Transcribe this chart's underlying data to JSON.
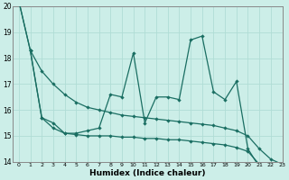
{
  "xlabel": "Humidex (Indice chaleur)",
  "bg_color": "#cceee8",
  "grid_color": "#b0ddd5",
  "line_color": "#1a6e62",
  "ylim": [
    14,
    20
  ],
  "xlim": [
    -0.5,
    23
  ],
  "yticks": [
    14,
    15,
    16,
    17,
    18,
    19,
    20
  ],
  "xticks": [
    0,
    1,
    2,
    3,
    4,
    5,
    6,
    7,
    8,
    9,
    10,
    11,
    12,
    13,
    14,
    15,
    16,
    17,
    18,
    19,
    20,
    21,
    22,
    23
  ],
  "line_volatile_x": [
    0,
    1,
    2,
    3,
    4,
    5,
    6,
    7,
    8,
    9,
    10,
    11,
    12,
    13,
    14,
    15,
    16,
    17,
    18,
    19,
    20,
    21,
    22,
    23
  ],
  "line_volatile_y": [
    20.2,
    18.3,
    15.7,
    15.5,
    15.1,
    15.1,
    15.2,
    15.3,
    16.6,
    16.5,
    18.2,
    15.5,
    16.5,
    16.5,
    16.4,
    18.7,
    18.85,
    16.7,
    16.4,
    17.1,
    14.5,
    13.8,
    13.8,
    13.9
  ],
  "line_upper_x": [
    0,
    1,
    2,
    3,
    4,
    5,
    6,
    7,
    8,
    9,
    10,
    11,
    12,
    13,
    14,
    15,
    16,
    17,
    18,
    19,
    20,
    21,
    22,
    23
  ],
  "line_upper_y": [
    20.2,
    18.3,
    17.5,
    17.0,
    16.6,
    16.3,
    16.1,
    16.0,
    15.9,
    15.8,
    15.75,
    15.7,
    15.65,
    15.6,
    15.55,
    15.5,
    15.45,
    15.4,
    15.3,
    15.2,
    15.0,
    14.5,
    14.1,
    13.9
  ],
  "line_lower_x": [
    1,
    2,
    3,
    4,
    5,
    6,
    7,
    8,
    9,
    10,
    11,
    12,
    13,
    14,
    15,
    16,
    17,
    18,
    19,
    20,
    21,
    22,
    23
  ],
  "line_lower_y": [
    18.3,
    15.7,
    15.3,
    15.1,
    15.05,
    15.0,
    15.0,
    15.0,
    14.95,
    14.95,
    14.9,
    14.9,
    14.85,
    14.85,
    14.8,
    14.75,
    14.7,
    14.65,
    14.55,
    14.4,
    13.9,
    13.8,
    13.85
  ]
}
